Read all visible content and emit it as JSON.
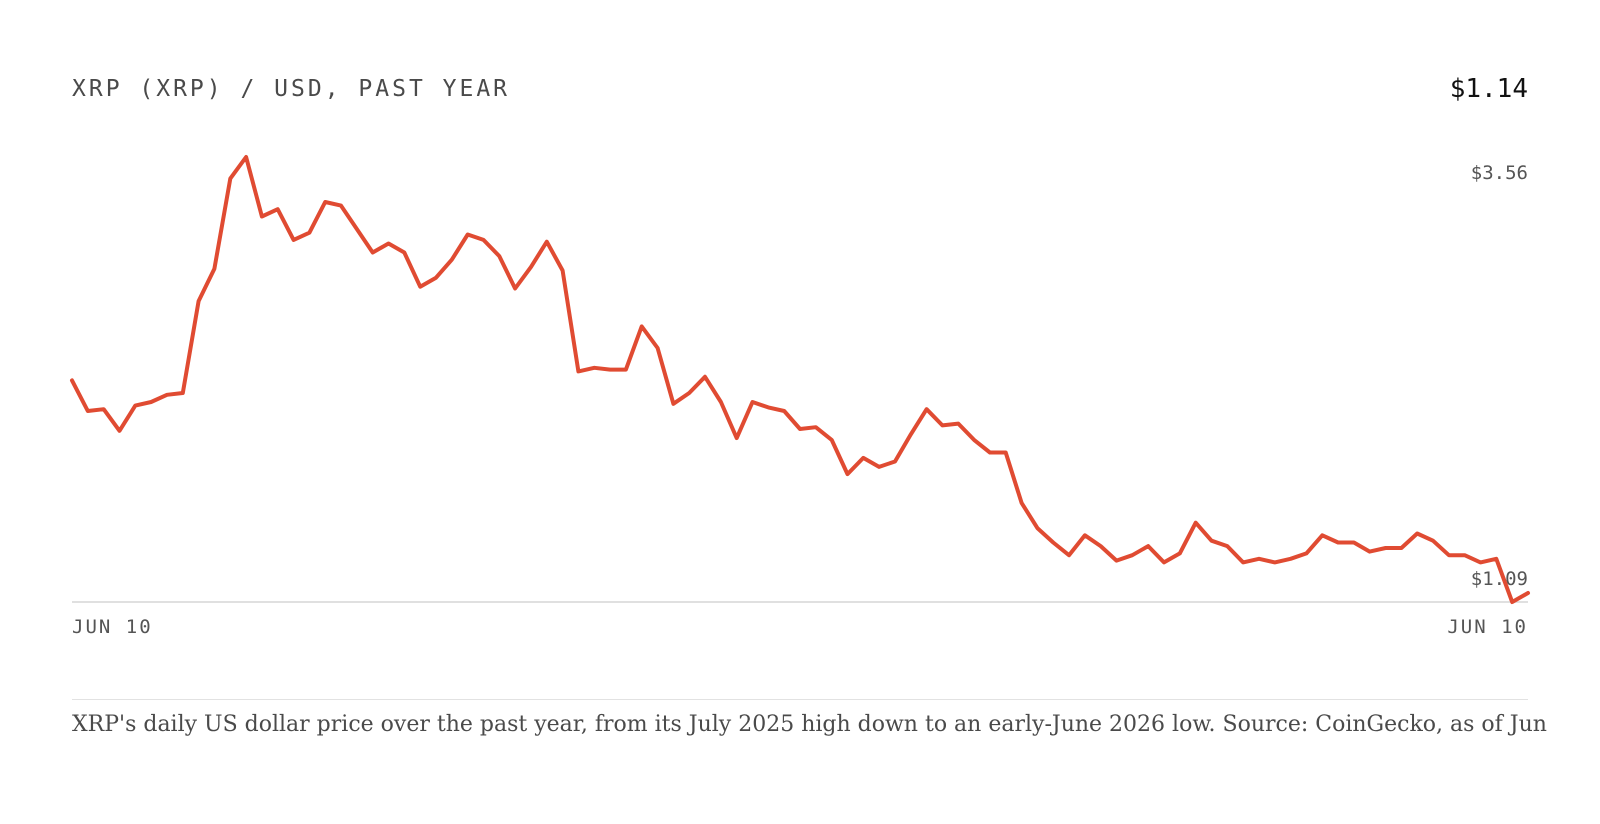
{
  "chart_data": {
    "type": "line",
    "title": "XRP (XRP) / USD, PAST YEAR",
    "current_price": "$1.14",
    "x_tick_labels": [
      "JUN 10",
      "JUN 10"
    ],
    "y_tick_labels": [
      "$3.56",
      "$1.09"
    ],
    "ylim": [
      1.09,
      3.56
    ],
    "grid": false,
    "legend": "none",
    "line_color": "#e04b32",
    "series": [
      {
        "values": [
          2.32,
          2.15,
          2.16,
          2.04,
          2.18,
          2.2,
          2.24,
          2.25,
          2.76,
          2.94,
          3.44,
          3.56,
          3.23,
          3.27,
          3.1,
          3.14,
          3.31,
          3.29,
          3.16,
          3.03,
          3.08,
          3.03,
          2.84,
          2.89,
          2.99,
          3.13,
          3.1,
          3.01,
          2.83,
          2.95,
          3.09,
          2.93,
          2.37,
          2.39,
          2.38,
          2.38,
          2.62,
          2.5,
          2.19,
          2.25,
          2.34,
          2.2,
          2.0,
          2.2,
          2.17,
          2.15,
          2.05,
          2.06,
          1.99,
          1.8,
          1.89,
          1.84,
          1.87,
          2.02,
          2.16,
          2.07,
          2.08,
          1.99,
          1.92,
          1.92,
          1.64,
          1.5,
          1.42,
          1.35,
          1.46,
          1.4,
          1.32,
          1.35,
          1.4,
          1.31,
          1.36,
          1.53,
          1.43,
          1.4,
          1.31,
          1.33,
          1.31,
          1.33,
          1.36,
          1.46,
          1.42,
          1.42,
          1.37,
          1.39,
          1.39,
          1.47,
          1.43,
          1.35,
          1.35,
          1.31,
          1.33,
          1.09,
          1.14
        ]
      }
    ]
  },
  "caption": "XRP's daily US dollar price over the past year, from its July 2025 high down to an early-June 2026 low. Source: CoinGecko, as of Jun"
}
